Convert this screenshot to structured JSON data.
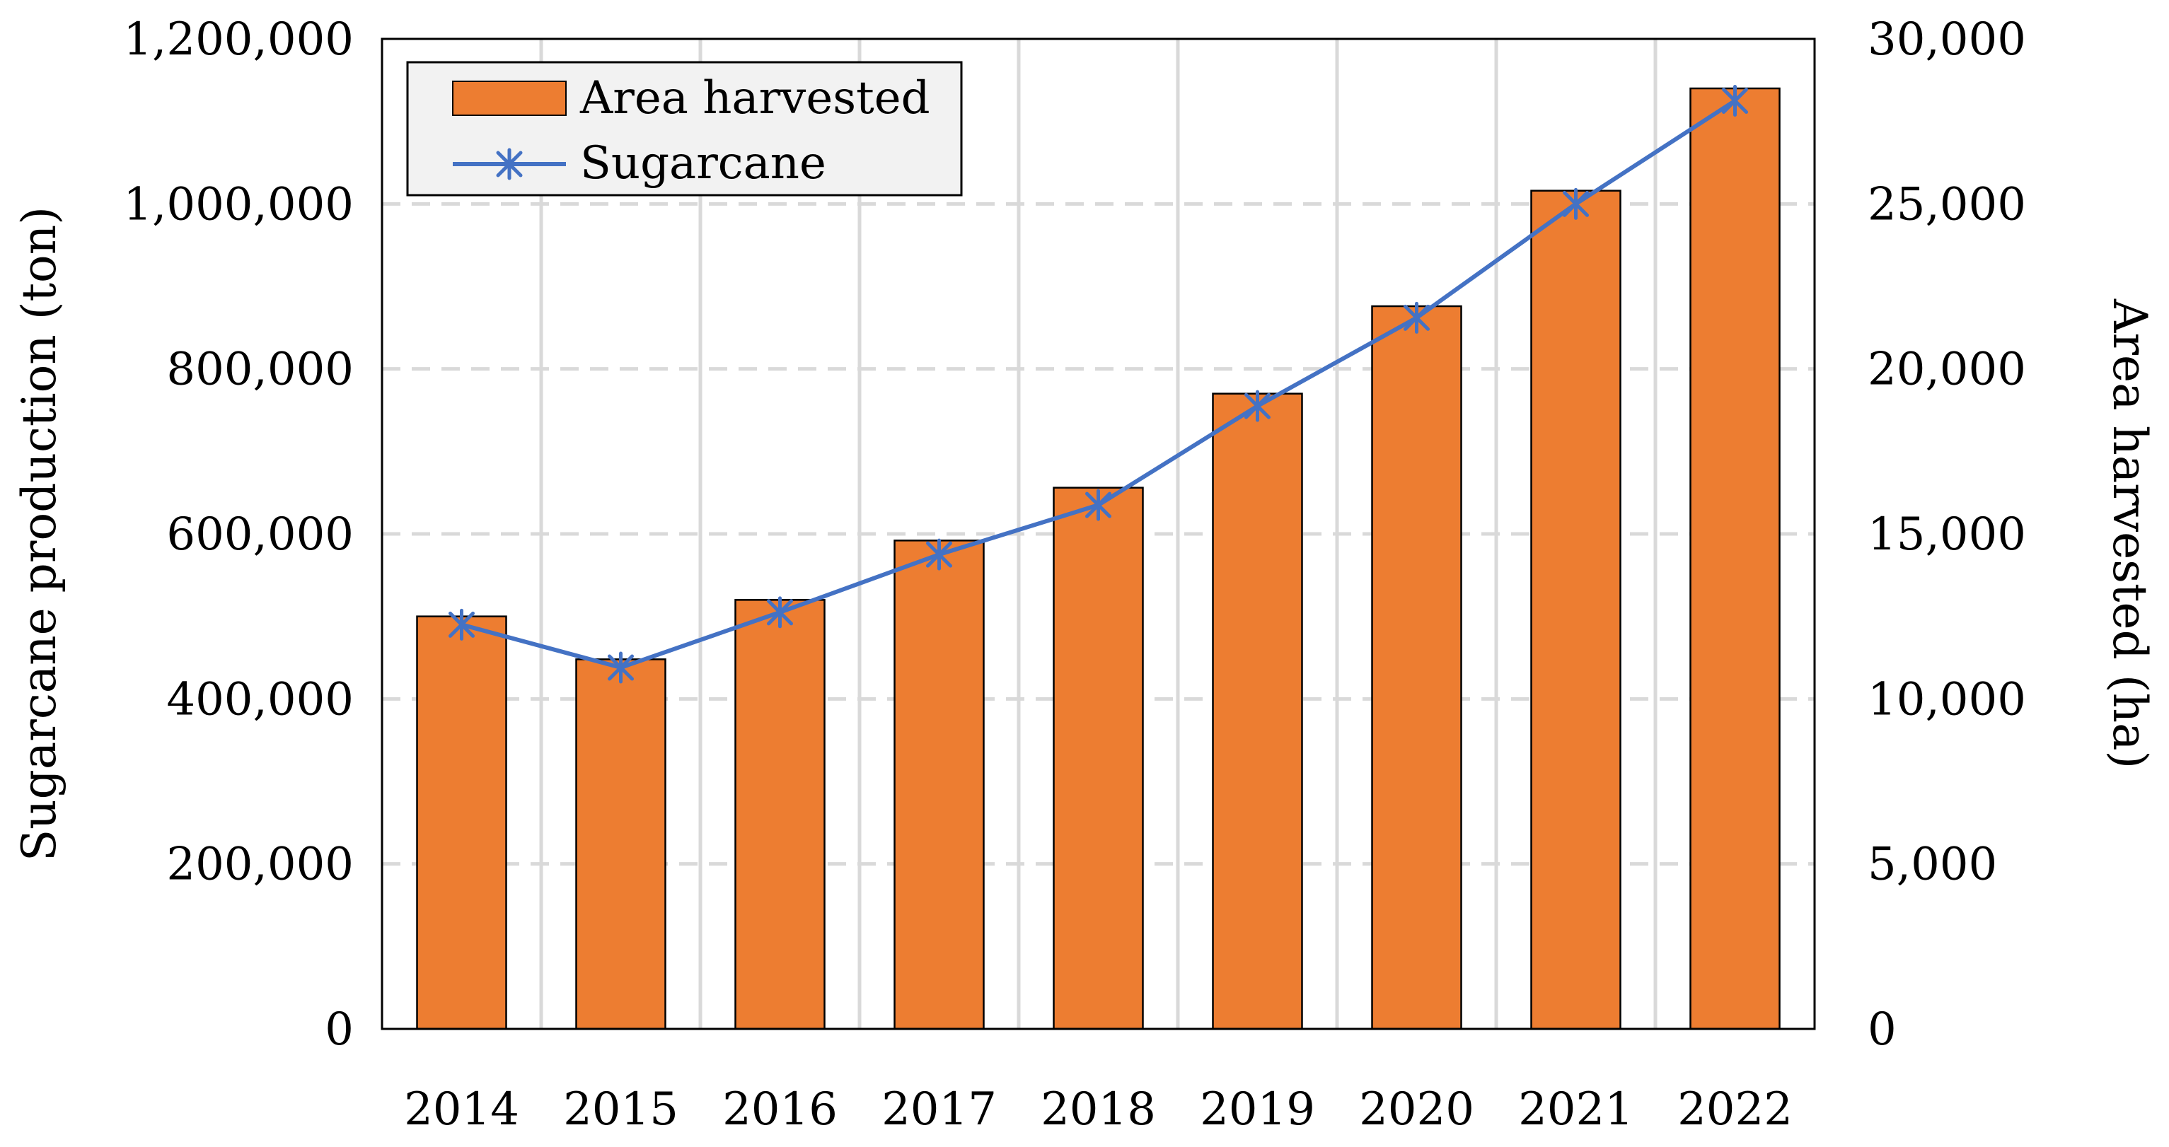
{
  "chart_data": {
    "type": "bar+line",
    "title": "",
    "categories": [
      "2014",
      "2015",
      "2016",
      "2017",
      "2018",
      "2019",
      "2020",
      "2021",
      "2022"
    ],
    "series": [
      {
        "name": "Area harvested",
        "type": "bar",
        "axis": "right",
        "values": [
          12500,
          11200,
          13000,
          14800,
          16400,
          19250,
          21900,
          25400,
          28500
        ]
      },
      {
        "name": "Sugarcane",
        "type": "line",
        "axis": "left",
        "marker": "asterisk",
        "values": [
          490000,
          438000,
          505000,
          575000,
          635000,
          755000,
          862000,
          1000000,
          1125000
        ]
      }
    ],
    "y_left": {
      "label": "Sugarcane production (ton)",
      "ylim": [
        0,
        1200000
      ],
      "ticks": [
        0,
        200000,
        400000,
        600000,
        800000,
        1000000,
        1200000
      ],
      "tick_labels": [
        "0",
        "200,000",
        "400,000",
        "600,000",
        "800,000",
        "1,000,000",
        "1,200,000"
      ]
    },
    "y_right": {
      "label": "Area harvested (ha)",
      "ylim": [
        0,
        30000
      ],
      "ticks": [
        0,
        5000,
        10000,
        15000,
        20000,
        25000,
        30000
      ],
      "tick_labels": [
        "0",
        "5,000",
        "10,000",
        "15,000",
        "20,000",
        "25,000",
        "30,000"
      ]
    },
    "xlabel": "",
    "grid": true,
    "legend": {
      "position": "top-left",
      "entries": [
        "Area harvested",
        "Sugarcane"
      ]
    },
    "colors": {
      "bar": "#ed7d31",
      "bar_edge": "#000000",
      "line": "#4472c4",
      "grid": "#d9d9d9"
    }
  }
}
